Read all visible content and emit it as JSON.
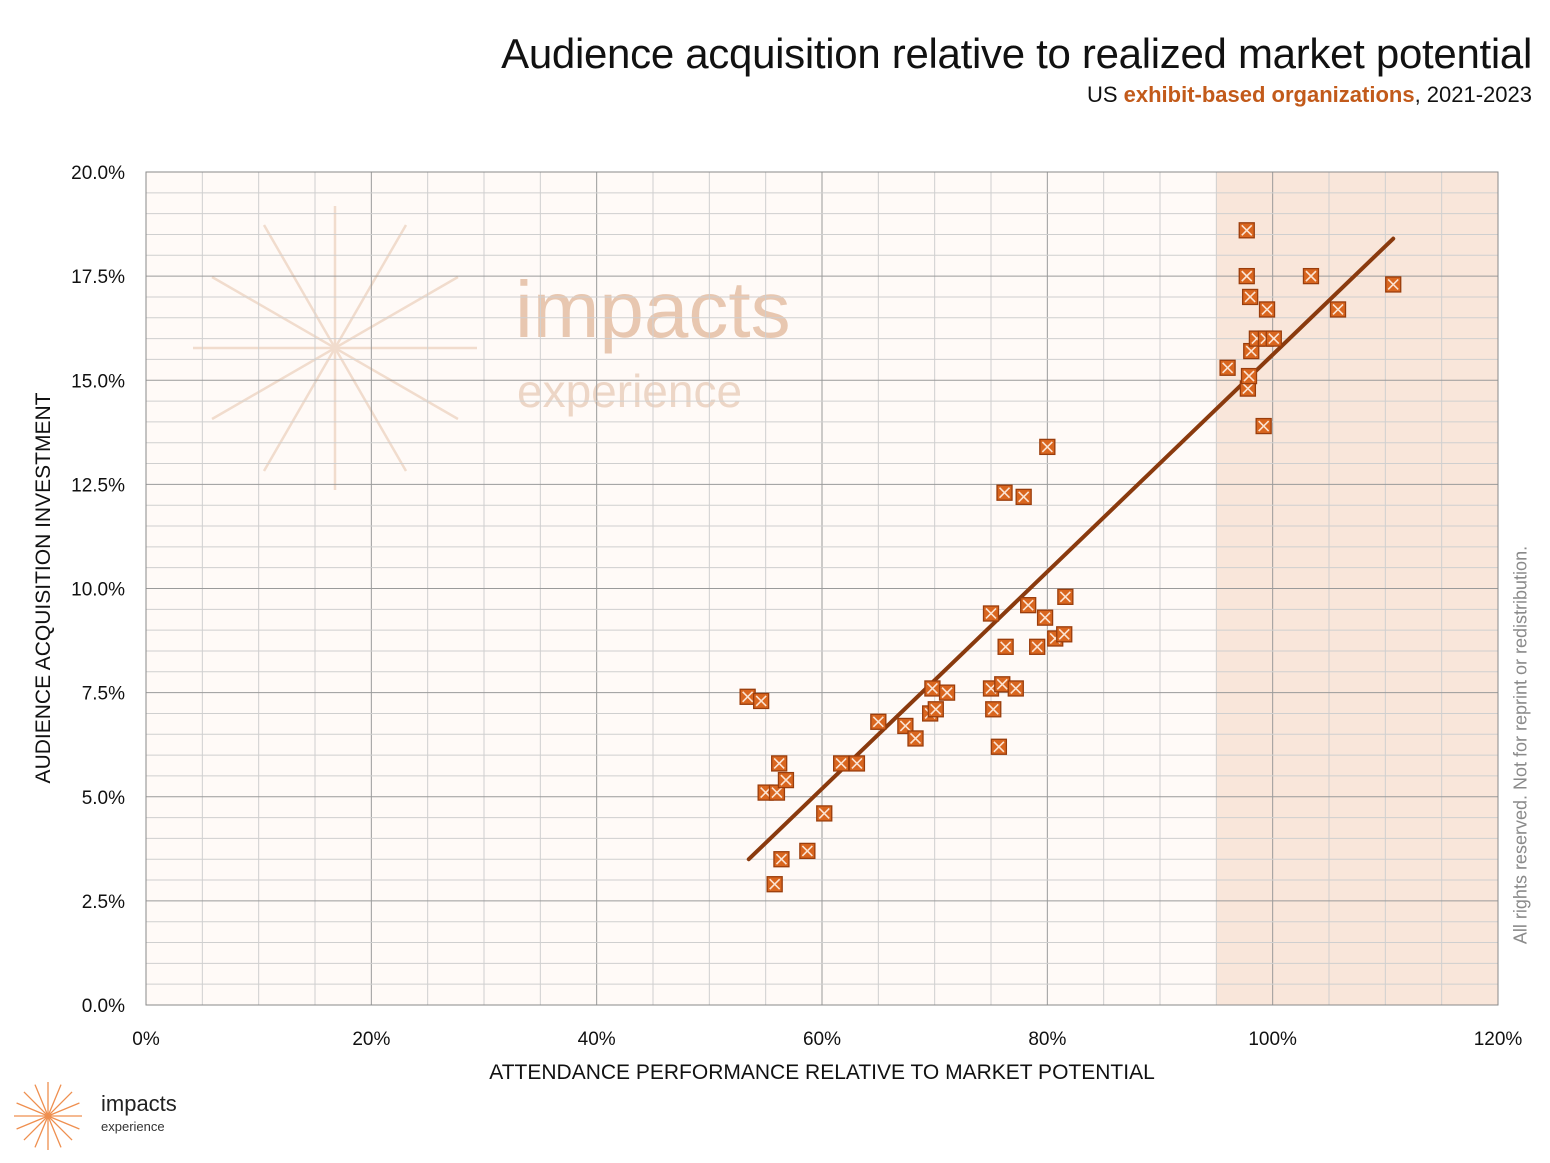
{
  "title": "Audience acquisition relative to realized market potential",
  "subtitle": {
    "prefix": "US ",
    "highlight": "exhibit-based organizations",
    "suffix": ", 2021-2023"
  },
  "rights_notice": "All rights reserved. Not for reprint or redistribution.",
  "watermark": {
    "line1": "impacts",
    "line2": "experience"
  },
  "logo": {
    "line1": "impacts",
    "line2": "experience"
  },
  "colors": {
    "accent": "#c25a1a",
    "marker_fill": "#d9661f",
    "trend_line": "#8a3a0e",
    "plot_background": "#fffaf7",
    "highlight_band": "#f9e6da",
    "watermark": "#e8c7b0",
    "grid_major": "#9a9a9a",
    "grid_minor": "#cfcfcf"
  },
  "chart_data": {
    "type": "scatter",
    "title": "Audience acquisition relative to realized market potential",
    "subtitle": "US exhibit-based organizations, 2021-2023",
    "xlabel": "ATTENDANCE PERFORMANCE RELATIVE TO MARKET POTENTIAL",
    "ylabel": "AUDIENCE ACQUISITION INVESTMENT",
    "xlim": [
      0,
      120
    ],
    "ylim": [
      0,
      20
    ],
    "x_ticks": [
      0,
      20,
      40,
      60,
      80,
      100,
      120
    ],
    "x_tick_labels": [
      "0%",
      "20%",
      "40%",
      "60%",
      "80%",
      "100%",
      "120%"
    ],
    "y_ticks": [
      0,
      2.5,
      5,
      7.5,
      10,
      12.5,
      15,
      17.5,
      20
    ],
    "y_tick_labels": [
      "0.0%",
      "2.5%",
      "5.0%",
      "7.5%",
      "10.0%",
      "12.5%",
      "15.0%",
      "17.5%",
      "20.0%"
    ],
    "grid": true,
    "highlight_band_x": [
      95,
      120
    ],
    "points": [
      {
        "x": 53.4,
        "y": 7.4
      },
      {
        "x": 54.6,
        "y": 7.3
      },
      {
        "x": 55.0,
        "y": 5.1
      },
      {
        "x": 55.8,
        "y": 2.9
      },
      {
        "x": 56.0,
        "y": 5.1
      },
      {
        "x": 56.2,
        "y": 5.8
      },
      {
        "x": 56.4,
        "y": 3.5
      },
      {
        "x": 56.8,
        "y": 5.4
      },
      {
        "x": 58.7,
        "y": 3.7
      },
      {
        "x": 60.2,
        "y": 4.6
      },
      {
        "x": 61.7,
        "y": 5.8
      },
      {
        "x": 63.1,
        "y": 5.8
      },
      {
        "x": 65.0,
        "y": 6.8
      },
      {
        "x": 67.4,
        "y": 6.7
      },
      {
        "x": 68.3,
        "y": 6.4
      },
      {
        "x": 69.6,
        "y": 7.0
      },
      {
        "x": 69.8,
        "y": 7.6
      },
      {
        "x": 70.1,
        "y": 7.1
      },
      {
        "x": 71.1,
        "y": 7.5
      },
      {
        "x": 75.0,
        "y": 9.4
      },
      {
        "x": 75.0,
        "y": 7.6
      },
      {
        "x": 75.2,
        "y": 7.1
      },
      {
        "x": 75.7,
        "y": 6.2
      },
      {
        "x": 76.0,
        "y": 7.7
      },
      {
        "x": 76.2,
        "y": 12.3
      },
      {
        "x": 76.3,
        "y": 8.6
      },
      {
        "x": 77.2,
        "y": 7.6
      },
      {
        "x": 77.9,
        "y": 12.2
      },
      {
        "x": 78.3,
        "y": 9.6
      },
      {
        "x": 79.1,
        "y": 8.6
      },
      {
        "x": 79.8,
        "y": 9.3
      },
      {
        "x": 80.0,
        "y": 13.4
      },
      {
        "x": 80.7,
        "y": 8.8
      },
      {
        "x": 81.5,
        "y": 8.9
      },
      {
        "x": 81.6,
        "y": 9.8
      },
      {
        "x": 96.0,
        "y": 15.3
      },
      {
        "x": 97.7,
        "y": 18.6
      },
      {
        "x": 97.7,
        "y": 17.5
      },
      {
        "x": 97.8,
        "y": 14.8
      },
      {
        "x": 97.9,
        "y": 15.1
      },
      {
        "x": 98.0,
        "y": 17.0
      },
      {
        "x": 98.1,
        "y": 15.7
      },
      {
        "x": 98.6,
        "y": 16.0
      },
      {
        "x": 99.2,
        "y": 13.9
      },
      {
        "x": 99.4,
        "y": 16.0
      },
      {
        "x": 99.5,
        "y": 16.7
      },
      {
        "x": 100.1,
        "y": 16.0
      },
      {
        "x": 103.4,
        "y": 17.5
      },
      {
        "x": 105.8,
        "y": 16.7
      },
      {
        "x": 110.7,
        "y": 17.3
      }
    ],
    "trendline": {
      "x": [
        53.5,
        110.7
      ],
      "y": [
        3.5,
        18.4
      ]
    }
  }
}
